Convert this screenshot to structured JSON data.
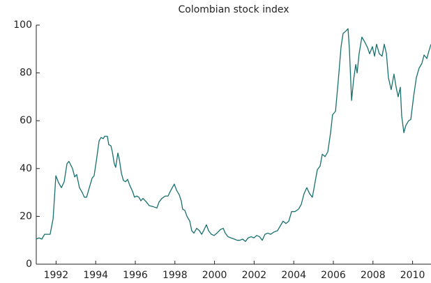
{
  "chart_data": {
    "type": "line",
    "title": "Colombian stock index",
    "x": [
      1991.0,
      1991.14,
      1991.28,
      1991.42,
      1991.7,
      1991.85,
      1991.99,
      1992.13,
      1992.27,
      1992.41,
      1992.55,
      1992.65,
      1992.83,
      1992.94,
      1993.04,
      1993.18,
      1993.32,
      1993.43,
      1993.54,
      1993.68,
      1993.82,
      1993.92,
      1994.03,
      1994.17,
      1994.27,
      1994.38,
      1994.45,
      1994.59,
      1994.66,
      1994.77,
      1994.84,
      1994.94,
      1995.01,
      1995.12,
      1995.19,
      1995.3,
      1995.4,
      1995.51,
      1995.61,
      1995.72,
      1995.86,
      1995.96,
      1996.07,
      1996.18,
      1996.28,
      1996.39,
      1996.56,
      1996.7,
      1996.92,
      1997.09,
      1997.2,
      1997.34,
      1997.51,
      1997.65,
      1997.8,
      1997.97,
      1998.08,
      1998.22,
      1998.32,
      1998.39,
      1998.5,
      1998.61,
      1998.75,
      1998.85,
      1998.96,
      1999.1,
      1999.24,
      1999.35,
      1999.45,
      1999.59,
      1999.7,
      1999.84,
      1999.98,
      2000.12,
      2000.3,
      2000.44,
      2000.54,
      2000.68,
      2000.82,
      2001.0,
      2001.14,
      2001.28,
      2001.42,
      2001.56,
      2001.7,
      2001.85,
      2001.99,
      2002.13,
      2002.27,
      2002.41,
      2002.55,
      2002.69,
      2002.83,
      2003.01,
      2003.18,
      2003.32,
      2003.46,
      2003.61,
      2003.75,
      2003.89,
      2004.06,
      2004.24,
      2004.38,
      2004.52,
      2004.66,
      2004.8,
      2004.94,
      2005.05,
      2005.19,
      2005.33,
      2005.44,
      2005.58,
      2005.72,
      2005.86,
      2005.96,
      2006.11,
      2006.25,
      2006.39,
      2006.49,
      2006.63,
      2006.74,
      2006.81,
      2006.92,
      2007.02,
      2007.13,
      2007.2,
      2007.3,
      2007.44,
      2007.58,
      2007.73,
      2007.83,
      2007.97,
      2008.08,
      2008.18,
      2008.32,
      2008.46,
      2008.57,
      2008.68,
      2008.78,
      2008.92,
      2009.06,
      2009.17,
      2009.27,
      2009.38,
      2009.45,
      2009.56,
      2009.66,
      2009.8,
      2009.91,
      2010.05,
      2010.19,
      2010.33,
      2010.47,
      2010.58,
      2010.72,
      2010.82,
      2010.93
    ],
    "series": [
      {
        "color": "#17706e",
        "values": [
          10.5,
          11,
          10.5,
          12.5,
          12.5,
          19,
          37,
          34,
          32,
          34.5,
          42,
          43,
          40,
          36.5,
          37.5,
          32,
          30,
          28,
          28,
          32,
          36,
          37,
          43,
          51.5,
          53,
          52.5,
          53.5,
          53.5,
          50,
          49.5,
          47,
          42,
          40.5,
          46.5,
          44,
          38,
          35,
          34.5,
          35.5,
          33,
          30.5,
          28,
          28.5,
          28,
          26.5,
          27.5,
          26,
          24.5,
          24,
          23.5,
          26,
          27.5,
          28.5,
          28.5,
          31,
          33.5,
          31,
          29,
          26.5,
          23,
          22.5,
          20,
          18,
          14,
          13,
          15,
          14,
          12.5,
          14,
          16.5,
          14,
          12.5,
          12,
          13,
          14.5,
          15,
          13,
          11.5,
          11,
          10.5,
          10,
          10,
          10.5,
          9.5,
          11,
          11.5,
          11,
          12,
          11.5,
          10,
          12.5,
          13,
          12.5,
          13.5,
          14,
          16,
          18,
          17,
          18,
          22,
          22,
          23,
          25,
          29.5,
          32,
          29.5,
          28,
          33,
          39.5,
          41,
          46,
          45,
          47,
          55,
          62.5,
          64,
          77,
          91,
          96.5,
          97.5,
          98.5,
          90,
          68.5,
          77,
          83.5,
          80,
          88,
          95,
          93,
          90.5,
          88,
          91,
          87,
          92,
          88,
          87,
          92,
          88,
          78,
          73,
          79.5,
          74,
          70,
          74,
          62,
          55,
          58,
          60,
          60.5,
          70,
          78,
          82,
          84,
          87.5,
          86,
          89,
          92
        ]
      }
    ],
    "xlim": [
      1991,
      2010.93
    ],
    "xticks": [
      1992,
      1994,
      1996,
      1998,
      2000,
      2002,
      2004,
      2006,
      2008,
      2010
    ],
    "ylim": [
      0,
      100
    ],
    "yticks": [
      0,
      20,
      40,
      60,
      80,
      100
    ]
  }
}
